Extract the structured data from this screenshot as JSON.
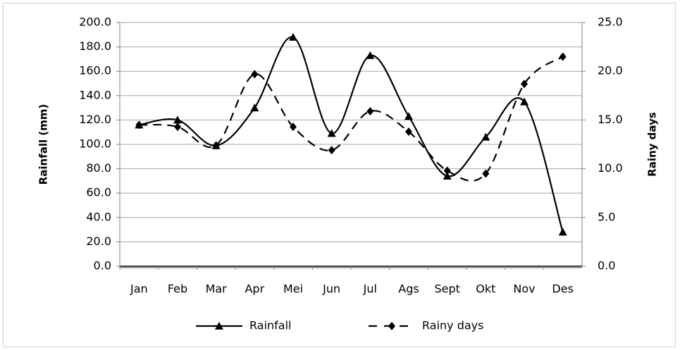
{
  "chart_data": {
    "type": "line",
    "categories": [
      "Jan",
      "Feb",
      "Mar",
      "Apr",
      "Mei",
      "Jun",
      "Jul",
      "Ags",
      "Sept",
      "Okt",
      "Nov",
      "Des"
    ],
    "series": [
      {
        "name": "Rainfall",
        "color": "#000000",
        "marker": "triangle",
        "dash": "solid",
        "values": [
          116,
          120,
          99,
          130,
          188,
          109,
          173,
          123,
          74,
          106,
          135,
          28
        ]
      },
      {
        "name": "Rainy days",
        "color": "#000000",
        "marker": "diamond",
        "dash": "dashed",
        "axis": "y2",
        "values": [
          14.5,
          14.3,
          12.4,
          19.7,
          14.3,
          11.9,
          15.9,
          13.8,
          9.8,
          9.5,
          18.7,
          21.5
        ]
      }
    ],
    "y_label": "Rainfall (mm)",
    "y2_label": "Rainy days",
    "ylim": [
      0,
      200
    ],
    "yticks": [
      {
        "value": 0,
        "label": "0.0"
      },
      {
        "value": 20,
        "label": "20.0"
      },
      {
        "value": 40,
        "label": "40.0"
      },
      {
        "value": 60,
        "label": "60.0"
      },
      {
        "value": 80,
        "label": "80.0"
      },
      {
        "value": 100,
        "label": "100.0"
      },
      {
        "value": 120,
        "label": "120.0"
      },
      {
        "value": 140,
        "label": "140.0"
      },
      {
        "value": 160,
        "label": "160.0"
      },
      {
        "value": 180,
        "label": "180.0"
      },
      {
        "value": 200,
        "label": "200.0"
      }
    ],
    "y2lim": [
      0,
      25
    ],
    "y2ticks": [
      {
        "value": 0,
        "label": "0.0"
      },
      {
        "value": 5,
        "label": "5.0"
      },
      {
        "value": 10,
        "label": "10.0"
      },
      {
        "value": 15,
        "label": "15.0"
      },
      {
        "value": 20,
        "label": "20.0"
      },
      {
        "value": 25,
        "label": "25.0"
      }
    ],
    "grid": true,
    "smooth": true,
    "legend": "bottom"
  }
}
